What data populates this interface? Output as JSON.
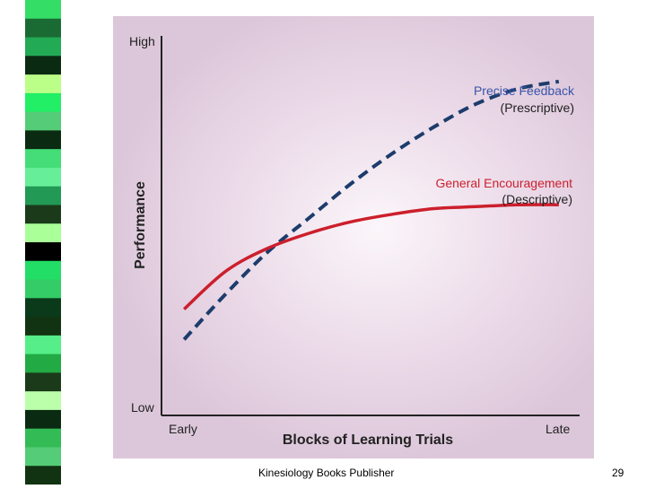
{
  "footer": {
    "publisher": "Kinesiology Books Publisher",
    "page_number": "29"
  },
  "colors": {
    "precise": "#1c3c6c",
    "general": "#cc1f2c",
    "axis": "#222222",
    "panel": "#e6d3e3"
  },
  "stripe_colors": [
    "#33dd66",
    "#1a6b33",
    "#22aa55",
    "#0a2a12",
    "#bbff88",
    "#22ee66",
    "#55cc77",
    "#0a2a12",
    "#44dd77",
    "#66ee99",
    "#229955",
    "#1a3a1a",
    "#aaff99",
    "#000000",
    "#22dd66",
    "#33cc66",
    "#0a3a1a",
    "#113311",
    "#55ee88",
    "#22aa44",
    "#1a3a1a",
    "#bbffaa",
    "#0a2a12",
    "#33bb55",
    "#55cc77",
    "#113311"
  ],
  "chart_data": {
    "type": "line",
    "xlabel": "Blocks of Learning Trials",
    "ylabel": "Performance",
    "x_tick_labels": {
      "start": "Early",
      "end": "Late"
    },
    "y_tick_labels": {
      "start": "Low",
      "end": "High"
    },
    "xlim": [
      0,
      1
    ],
    "ylim": [
      0,
      1
    ],
    "grid": false,
    "series": [
      {
        "name": "Precise Feedback (Prescriptive)",
        "label_lines": [
          "Precise Feedback",
          "(Prescriptive)"
        ],
        "style": "dashed",
        "color": "#1c3c6c",
        "x": [
          0.05,
          0.15,
          0.25,
          0.35,
          0.45,
          0.55,
          0.65,
          0.75,
          0.85,
          0.95
        ],
        "y": [
          0.2,
          0.32,
          0.43,
          0.52,
          0.61,
          0.69,
          0.76,
          0.82,
          0.86,
          0.88
        ]
      },
      {
        "name": "General Encouragement (Descriptive)",
        "label_lines": [
          "General Encouragement",
          "(Descriptive)"
        ],
        "style": "solid",
        "color": "#cc1f2c",
        "x": [
          0.05,
          0.15,
          0.25,
          0.35,
          0.45,
          0.55,
          0.65,
          0.75,
          0.85,
          0.95
        ],
        "y": [
          0.28,
          0.38,
          0.44,
          0.48,
          0.51,
          0.53,
          0.545,
          0.55,
          0.555,
          0.555
        ]
      }
    ]
  }
}
